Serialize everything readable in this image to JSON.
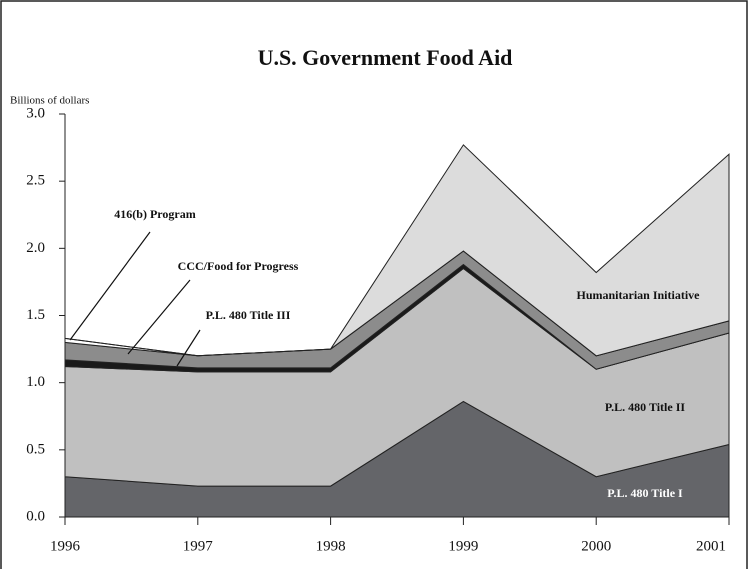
{
  "chart_data": {
    "type": "stacked_area",
    "title": "U.S. Government Food Aid",
    "y_label": "Billions of dollars",
    "categories": [
      "1996",
      "1997",
      "1998",
      "1999",
      "2000",
      "2001"
    ],
    "series": [
      {
        "name": "P.L. 480 Title I",
        "color": "#646569",
        "values": [
          0.3,
          0.23,
          0.23,
          0.86,
          0.3,
          0.54
        ]
      },
      {
        "name": "P.L. 480 Title II",
        "color": "#c0c0c0",
        "values": [
          0.82,
          0.85,
          0.85,
          0.99,
          0.8,
          0.83
        ]
      },
      {
        "name": "P.L. 480 Title III",
        "color": "#1a1a1a",
        "values": [
          0.05,
          0.03,
          0.03,
          0.03,
          0,
          0
        ]
      },
      {
        "name": "CCC/Food for Progress",
        "color": "#8c8c8c",
        "values": [
          0.13,
          0.09,
          0.14,
          0.1,
          0.1,
          0.09
        ]
      },
      {
        "name": "416(b) Program",
        "color": "#ffffff",
        "values": [
          0.03,
          0,
          0,
          0,
          0,
          0
        ]
      },
      {
        "name": "Humanitarian Initiative",
        "color": "#dcdcdc",
        "values": [
          0,
          0,
          0,
          0.79,
          0.62,
          1.24
        ]
      }
    ],
    "ylim": [
      0,
      3
    ],
    "yticks": [
      {
        "value": 0,
        "label": "0.0"
      },
      {
        "value": 0.5,
        "label": "0.5"
      },
      {
        "value": 1,
        "label": "1.0"
      },
      {
        "value": 1.5,
        "label": "1.5"
      },
      {
        "value": 2,
        "label": "2.0"
      },
      {
        "value": 2.5,
        "label": "2.5"
      },
      {
        "value": 3,
        "label": "3.0"
      }
    ]
  }
}
